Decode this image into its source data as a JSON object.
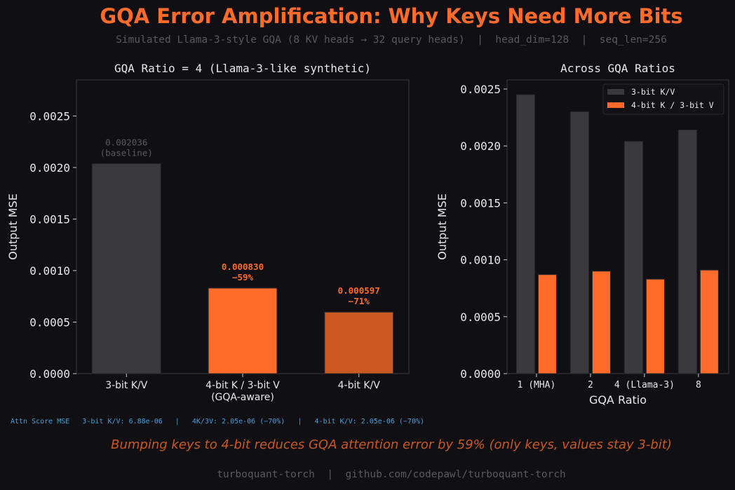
{
  "title": "GQA Error Amplification: Why Keys Need More Bits",
  "subtitle": "Simulated Llama-3-style GQA (8 KV heads → 32 query heads)  |  head_dim=128  |  seq_len=256",
  "colors": {
    "background": "#0f0f14",
    "title": "#ff6b2b",
    "gray_bar": "#3a393e",
    "orange": "#ff6b2b",
    "dark_orange": "#cc5820",
    "attn_text": "#4a9fd8",
    "footer": "#5a5a5e"
  },
  "chart_data": [
    {
      "type": "bar",
      "title": "GQA Ratio = 4 (Llama-3-like synthetic)",
      "xlabel": "",
      "ylabel": "Output MSE",
      "categories": [
        "3-bit K/V",
        "4-bit K / 3-bit V\n(GQA-aware)",
        "4-bit K/V"
      ],
      "values": [
        0.002036,
        0.00083,
        0.000597
      ],
      "bar_colors": [
        "#3a393e",
        "#ff6b2b",
        "#cc5820"
      ],
      "data_labels": [
        [
          "0.002036",
          "(baseline)"
        ],
        [
          "0.000830",
          "−59%"
        ],
        [
          "0.000597",
          "−71%"
        ]
      ],
      "ylim": [
        0,
        0.00285
      ],
      "yticks": [
        "0.0000",
        "0.0005",
        "0.0010",
        "0.0015",
        "0.0020",
        "0.0025"
      ],
      "grid": false
    },
    {
      "type": "bar",
      "title": "Across GQA Ratios",
      "xlabel": "GQA Ratio",
      "ylabel": "Output MSE",
      "categories": [
        "1 (MHA)",
        "2",
        "4 (Llama-3)",
        "8"
      ],
      "series": [
        {
          "name": "3-bit K/V",
          "color": "#3a393e",
          "values": [
            0.00245,
            0.0023,
            0.00204,
            0.00214
          ]
        },
        {
          "name": "4-bit K / 3-bit V",
          "color": "#ff6b2b",
          "values": [
            0.00087,
            0.0009,
            0.00083,
            0.00091
          ]
        }
      ],
      "ylim": [
        0,
        0.00258
      ],
      "yticks": [
        "0.0000",
        "0.0005",
        "0.0010",
        "0.0015",
        "0.0020",
        "0.0025"
      ],
      "legend": "top-right",
      "grid": false
    }
  ],
  "attn_line": "Attn Score MSE   3-bit K/V: 6.88e-06   |   4K/3V: 2.05e-06 (−70%)   |   4-bit K/V: 2.05e-06 (−70%)",
  "conclusion": "Bumping keys to 4-bit reduces GQA attention error by 59% (only keys, values stay 3-bit)",
  "footer": "turboquant-torch  |  github.com/codepawl/turboquant-torch"
}
